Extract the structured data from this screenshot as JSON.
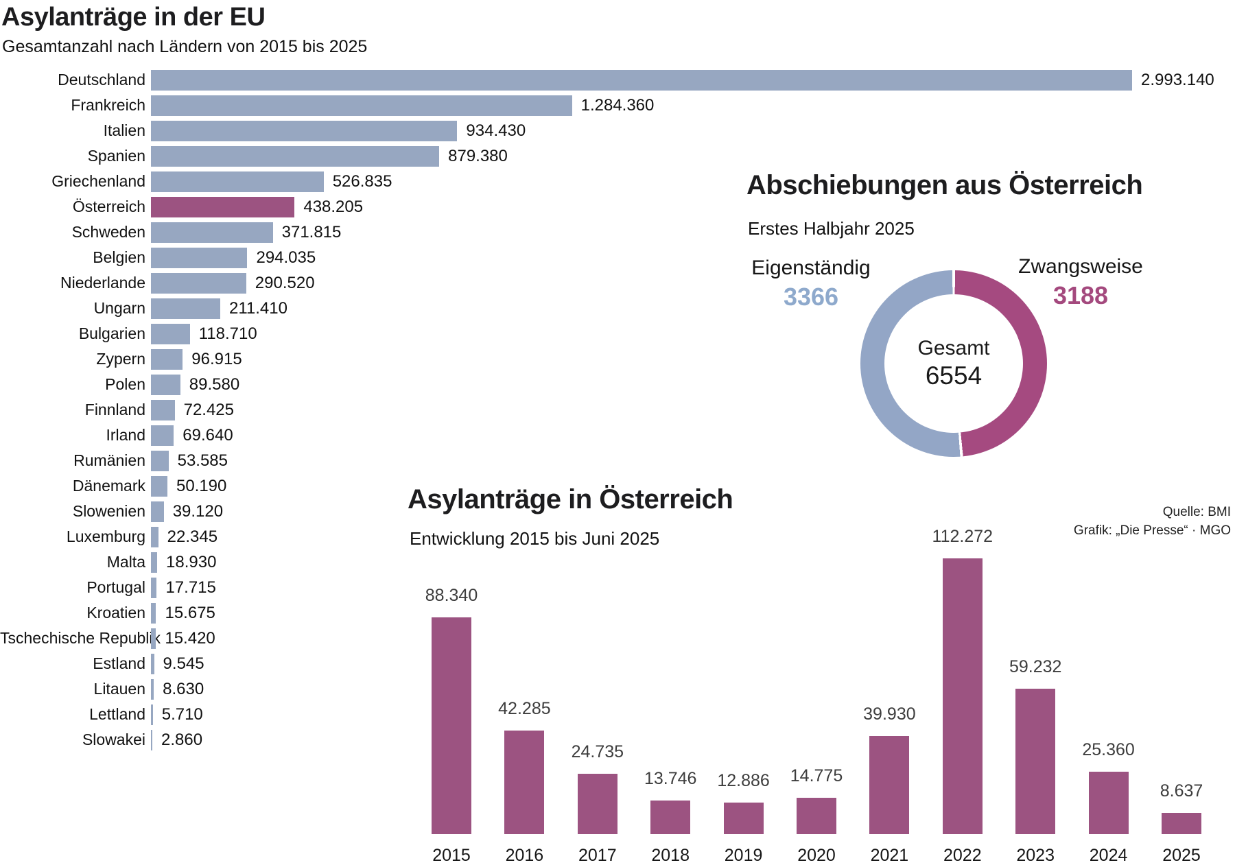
{
  "source": {
    "quelle": "Quelle: BMI",
    "grafik": "Grafik: „Die Presse“ · MGO"
  },
  "colors": {
    "bar_blue": "#97a7c1",
    "accent_purple": "#9c5381",
    "donut_blue": "#93a6c6",
    "donut_purple": "#a54a80",
    "text_blue": "#8ea9cc",
    "text_purple": "#a4497e"
  },
  "chart_data": [
    {
      "type": "bar",
      "orientation": "horizontal",
      "title": "Asylanträge in der EU",
      "subtitle": "Gesamtanzahl nach Ländern von 2015 bis 2025",
      "max_value": 2993140,
      "rows": [
        {
          "country": "Deutschland",
          "value": 2993140,
          "label": "2.993.140",
          "highlight": false
        },
        {
          "country": "Frankreich",
          "value": 1284360,
          "label": "1.284.360",
          "highlight": false
        },
        {
          "country": "Italien",
          "value": 934430,
          "label": "934.430",
          "highlight": false
        },
        {
          "country": "Spanien",
          "value": 879380,
          "label": "879.380",
          "highlight": false
        },
        {
          "country": "Griechenland",
          "value": 526835,
          "label": "526.835",
          "highlight": false
        },
        {
          "country": "Österreich",
          "value": 438205,
          "label": "438.205",
          "highlight": true
        },
        {
          "country": "Schweden",
          "value": 371815,
          "label": "371.815",
          "highlight": false
        },
        {
          "country": "Belgien",
          "value": 294035,
          "label": "294.035",
          "highlight": false
        },
        {
          "country": "Niederlande",
          "value": 290520,
          "label": "290.520",
          "highlight": false
        },
        {
          "country": "Ungarn",
          "value": 211410,
          "label": "211.410",
          "highlight": false
        },
        {
          "country": "Bulgarien",
          "value": 118710,
          "label": "118.710",
          "highlight": false
        },
        {
          "country": "Zypern",
          "value": 96915,
          "label": "96.915",
          "highlight": false
        },
        {
          "country": "Polen",
          "value": 89580,
          "label": "89.580",
          "highlight": false
        },
        {
          "country": "Finnland",
          "value": 72425,
          "label": "72.425",
          "highlight": false
        },
        {
          "country": "Irland",
          "value": 69640,
          "label": "69.640",
          "highlight": false
        },
        {
          "country": "Rumänien",
          "value": 53585,
          "label": "53.585",
          "highlight": false
        },
        {
          "country": "Dänemark",
          "value": 50190,
          "label": "50.190",
          "highlight": false
        },
        {
          "country": "Slowenien",
          "value": 39120,
          "label": "39.120",
          "highlight": false
        },
        {
          "country": "Luxemburg",
          "value": 22345,
          "label": "22.345",
          "highlight": false
        },
        {
          "country": "Malta",
          "value": 18930,
          "label": "18.930",
          "highlight": false
        },
        {
          "country": "Portugal",
          "value": 17715,
          "label": "17.715",
          "highlight": false
        },
        {
          "country": "Kroatien",
          "value": 15675,
          "label": "15.675",
          "highlight": false
        },
        {
          "country": "Tschechische Republik",
          "value": 15420,
          "label": "15.420",
          "highlight": false
        },
        {
          "country": "Estland",
          "value": 9545,
          "label": "9.545",
          "highlight": false
        },
        {
          "country": "Litauen",
          "value": 8630,
          "label": "8.630",
          "highlight": false
        },
        {
          "country": "Lettland",
          "value": 5710,
          "label": "5.710",
          "highlight": false
        },
        {
          "country": "Slowakei",
          "value": 2860,
          "label": "2.860",
          "highlight": false
        }
      ]
    },
    {
      "type": "donut",
      "title": "Abschiebungen aus Österreich",
      "subtitle": "Erstes Halbjahr 2025",
      "center_label": "Gesamt",
      "center_value": "6554",
      "segments": [
        {
          "name": "Eigenständig",
          "value": 3366,
          "label": "3366",
          "color": "#93a6c6"
        },
        {
          "name": "Zwangsweise",
          "value": 3188,
          "label": "3188",
          "color": "#a54a80"
        }
      ]
    },
    {
      "type": "bar",
      "orientation": "vertical",
      "title": "Asylanträge in Österreich",
      "subtitle": "Entwicklung 2015 bis Juni 2025",
      "categories": [
        "2015",
        "2016",
        "2017",
        "2018",
        "2019",
        "2020",
        "2021",
        "2022",
        "2023",
        "2024",
        "2025"
      ],
      "values": [
        88340,
        42285,
        24735,
        13746,
        12886,
        14775,
        39930,
        112272,
        59232,
        25360,
        8637
      ],
      "labels": [
        "88.340",
        "42.285",
        "24.735",
        "13.746",
        "12.886",
        "14.775",
        "39.930",
        "112.272",
        "59.232",
        "25.360",
        "8.637"
      ]
    }
  ]
}
